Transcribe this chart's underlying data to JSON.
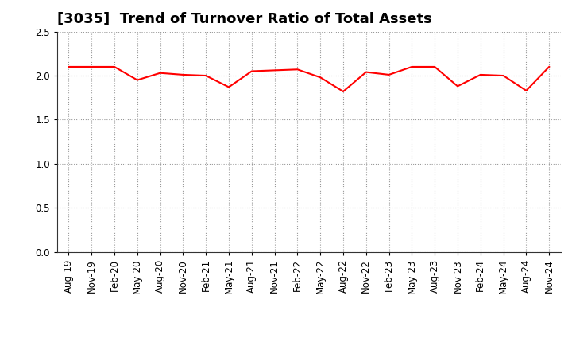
{
  "title": "[3035]  Trend of Turnover Ratio of Total Assets",
  "xlabels": [
    "Aug-19",
    "Nov-19",
    "Feb-20",
    "May-20",
    "Aug-20",
    "Nov-20",
    "Feb-21",
    "May-21",
    "Aug-21",
    "Nov-21",
    "Feb-22",
    "May-22",
    "Aug-22",
    "Nov-22",
    "Feb-23",
    "May-23",
    "Aug-23",
    "Nov-23",
    "Feb-24",
    "May-24",
    "Aug-24",
    "Nov-24"
  ],
  "values": [
    2.1,
    2.1,
    2.1,
    1.95,
    2.03,
    2.01,
    2.0,
    1.87,
    2.05,
    2.06,
    2.07,
    1.98,
    1.82,
    2.04,
    2.01,
    2.1,
    2.1,
    1.88,
    2.01,
    2.0,
    1.83,
    2.1
  ],
  "ylim": [
    0.0,
    2.5
  ],
  "yticks": [
    0.0,
    0.5,
    1.0,
    1.5,
    2.0,
    2.5
  ],
  "line_color": "#ff0000",
  "line_width": 1.5,
  "bg_color": "#ffffff",
  "grid_color": "#999999",
  "title_fontsize": 13,
  "tick_fontsize": 8.5
}
